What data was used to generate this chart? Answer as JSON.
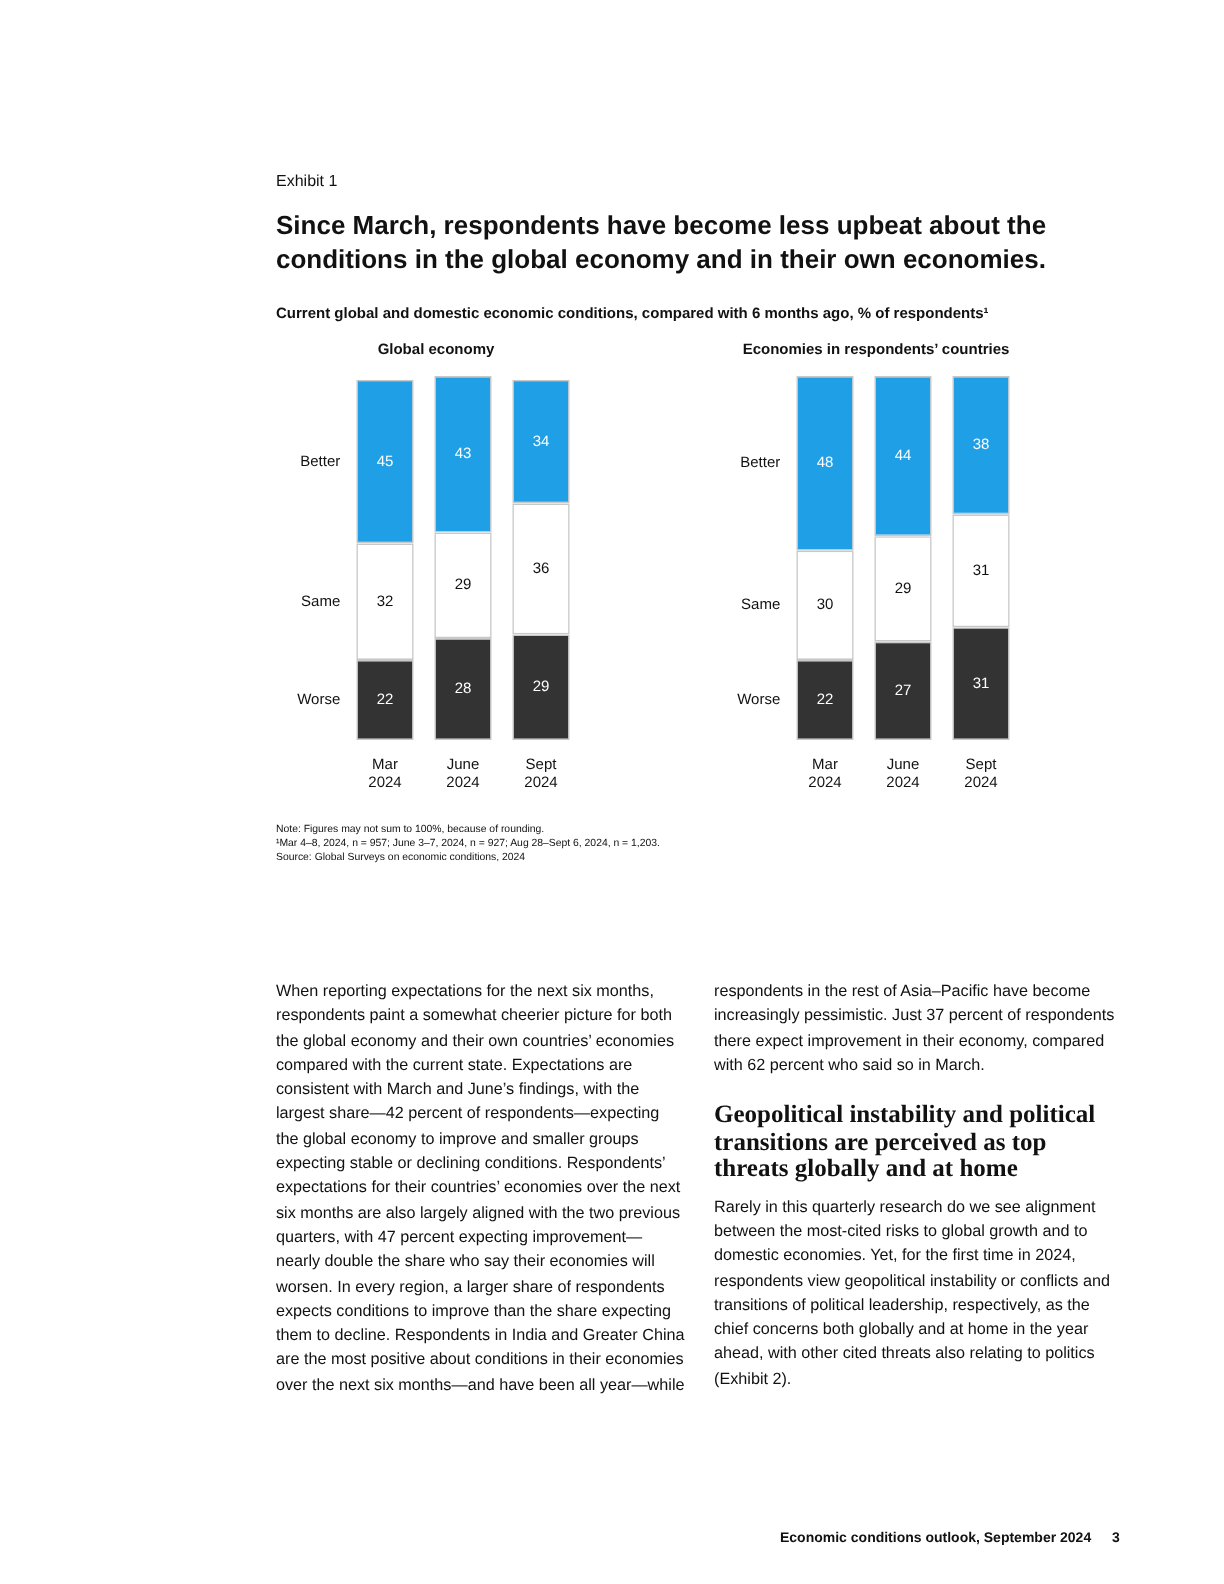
{
  "chart_data": [
    {
      "type": "bar",
      "title": "Global economy",
      "stacked": true,
      "data_labels": true,
      "tick_labels": "x",
      "categories": [
        "Mar 2024",
        "June 2024",
        "Sept 2024"
      ],
      "series": [
        {
          "name": "Worse",
          "color": "#333333",
          "values": [
            22,
            28,
            29
          ]
        },
        {
          "name": "Same",
          "color": "#ffffff",
          "values": [
            32,
            29,
            36
          ]
        },
        {
          "name": "Better",
          "color": "#1f9fe6",
          "values": [
            45,
            43,
            34
          ]
        }
      ],
      "annotations": [
        "Exhibit 1",
        "Since March, respondents have become less upbeat about the conditions in the global economy and in their own economies.",
        "Current global and domestic economic conditions, compared with 6 months ago, % of respondents¹",
        "Note: Figures may not sum to 100%, because of rounding.",
        "¹Mar 4–8, 2024, n = 957; June 3–7, 2024, n = 927; Aug 28–Sept 6, 2024, n = 1,203.",
        "Source: Global Surveys on economic conditions, 2024",
        "When reporting expectations for the next six months, respondents paint a somewhat cheerier picture for both the global economy and their own countries’ economies compared with the current state. Expectations are consistent with March and June’s findings, with the largest share—42 percent of respondents—expecting the global economy to improve and smaller groups expecting stable or declining conditions. Respondents’ expectations for their countries’ economies over the next six months are also largely aligned with the two previous quarters, with 47 percent expecting improvement—nearly double the share who say their economies will worsen. In every region, a larger share of respondents expects conditions to improve than the share expecting them to decline. Respondents in India and Greater China are the most positive about conditions in their economies over the next six months—and have been all year—while respondents in the rest of Asia–Pacific have become increasingly pessimistic. Just 37 percent of respondents there expect improvement in their economy, compared with 62 percent who said so in March.",
        "Geopolitical instability and political transitions are perceived as top threats globally and at home",
        "Rarely in this quarterly research do we see alignment between the most-cited risks to global growth and to domestic economies. Yet, for the first time in 2024, respondents view geopolitical instability or conflicts and transitions of political leadership, respectively, as the chief concerns both globally and at home in the year ahead, with other cited threats also relating to politics (Exhibit 2).",
        "Economic conditions outlook, September 2024",
        "3"
      ]
    },
    {
      "type": "bar",
      "title": "Economies in respondents’ countries",
      "stacked": true,
      "data_labels": true,
      "tick_labels": "x",
      "categories": [
        "Mar 2024",
        "June 2024",
        "Sept 2024"
      ],
      "series": [
        {
          "name": "Worse",
          "color": "#333333",
          "values": [
            22,
            27,
            31
          ]
        },
        {
          "name": "Same",
          "color": "#ffffff",
          "values": [
            30,
            29,
            31
          ]
        },
        {
          "name": "Better",
          "color": "#1f9fe6",
          "values": [
            48,
            44,
            38
          ]
        }
      ]
    }
  ]
}
